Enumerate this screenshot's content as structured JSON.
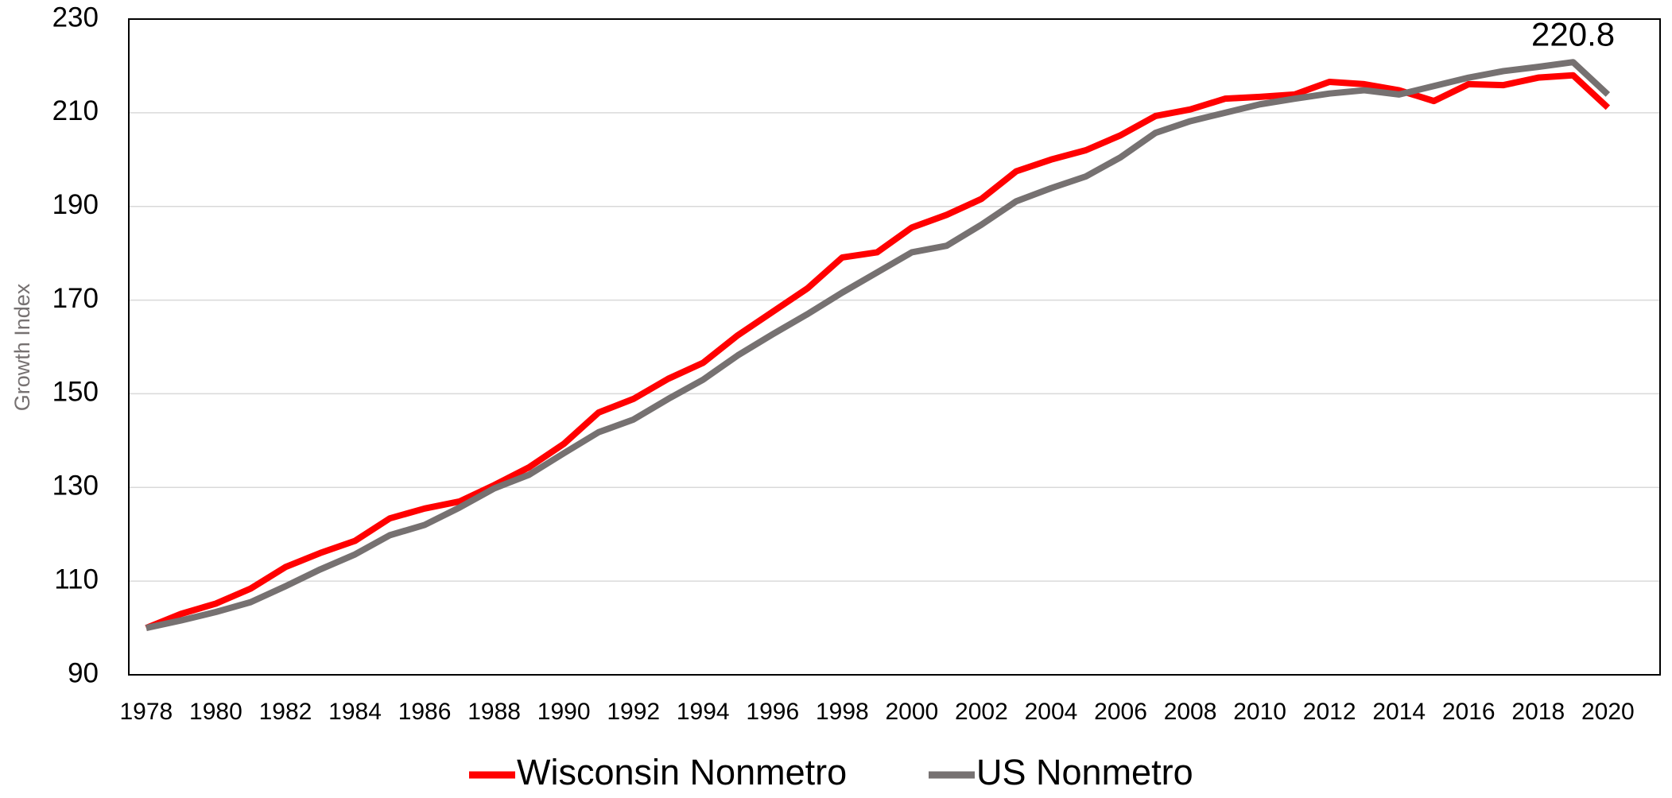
{
  "chart_data": {
    "type": "line",
    "y_label": "Growth Index",
    "x": [
      1978,
      1979,
      1980,
      1981,
      1982,
      1983,
      1984,
      1985,
      1986,
      1987,
      1988,
      1989,
      1990,
      1991,
      1992,
      1993,
      1994,
      1995,
      1996,
      1997,
      1998,
      1999,
      2000,
      2001,
      2002,
      2003,
      2004,
      2005,
      2006,
      2007,
      2008,
      2009,
      2010,
      2011,
      2012,
      2013,
      2014,
      2015,
      2016,
      2017,
      2018,
      2019,
      2020
    ],
    "series": [
      {
        "name": "Wisconsin Nonmetro",
        "color": "#ff0000",
        "values": [
          100,
          103,
          105.2,
          108.4,
          113,
          116,
          118.6,
          123.4,
          125.5,
          127,
          130.5,
          134.3,
          139.3,
          146,
          148.9,
          153.2,
          156.6,
          162.5,
          167.5,
          172.5,
          179.1,
          180.2,
          185.5,
          188.2,
          191.6,
          197.5,
          200,
          202,
          205.2,
          209.3,
          210.7,
          213,
          213.4,
          213.9,
          216.6,
          216.1,
          214.8,
          212.5,
          216.1,
          215.9,
          217.5,
          218,
          211.1
        ]
      },
      {
        "name": "US Nonmetro",
        "color": "#767171",
        "values": [
          100,
          101.6,
          103.4,
          105.5,
          108.9,
          112.5,
          115.7,
          119.8,
          122,
          125.7,
          129.8,
          132.7,
          137.3,
          141.8,
          144.5,
          148.9,
          153,
          158.2,
          162.7,
          167,
          171.6,
          175.9,
          180.2,
          181.6,
          186.1,
          191.1,
          193.9,
          196.4,
          200.5,
          205.7,
          208.2,
          210,
          211.8,
          213,
          214.1,
          214.8,
          213.9,
          215.7,
          217.5,
          218.9,
          219.8,
          220.8,
          213.9
        ]
      }
    ],
    "annotations": [
      {
        "text": "220.8",
        "x": 2019,
        "y": 220.8
      }
    ],
    "xlim": [
      1977.5,
      2021.5
    ],
    "xticks": [
      1978,
      1980,
      1982,
      1984,
      1986,
      1988,
      1990,
      1992,
      1994,
      1996,
      1998,
      2000,
      2002,
      2004,
      2006,
      2008,
      2010,
      2012,
      2014,
      2016,
      2018,
      2020
    ],
    "ylim": [
      90,
      230
    ],
    "yticks": [
      90,
      110,
      130,
      150,
      170,
      190,
      210,
      230
    ],
    "grid": true,
    "legend": "bottom"
  }
}
